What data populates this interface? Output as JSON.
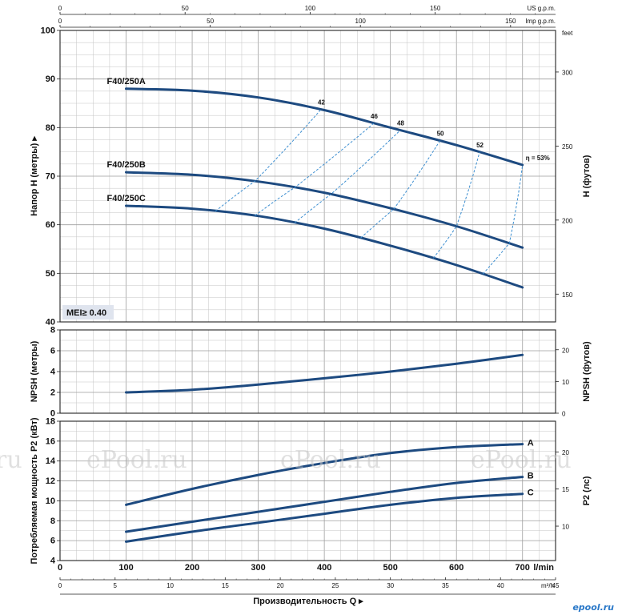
{
  "watermarks": [
    "ru",
    "ePool.ru",
    "ePool.ru",
    "ePool.ru"
  ],
  "logo_text": "epool.ru",
  "colors": {
    "curve": "#1d4a80",
    "eff": "#3c8ed0",
    "grid": "#c4c4c4",
    "grid_major": "#9e9e9e",
    "badge": "#dfe4ee",
    "logo": "#2a78c8"
  },
  "chart_data": [
    {
      "type": "line",
      "id": "head",
      "ylabel": "Напор H (метры) ▸",
      "ylabel2": "H (футов)",
      "x_unit_top_us": "US g.p.m.",
      "x_unit_top_imp": "Imp g.p.m.",
      "x_unit_top_ft": "feet",
      "xlim": [
        0,
        750
      ],
      "ylim": [
        40,
        100
      ],
      "yticks": [
        40,
        50,
        60,
        70,
        80,
        90,
        100
      ],
      "y2ticks": [
        150,
        200,
        250,
        300
      ],
      "us_gpm_ticks": [
        0,
        50,
        100,
        150
      ],
      "imp_gpm_ticks": [
        0,
        50,
        100,
        150
      ],
      "series": [
        {
          "name": "F40/250A",
          "x": [
            100,
            200,
            300,
            400,
            500,
            600,
            700
          ],
          "y": [
            88,
            87.6,
            86.2,
            83.6,
            80.0,
            76.4,
            72.3
          ]
        },
        {
          "name": "F40/250B",
          "x": [
            100,
            200,
            300,
            400,
            500,
            600,
            700
          ],
          "y": [
            70.8,
            70.3,
            68.9,
            66.6,
            63.4,
            59.7,
            55.3
          ]
        },
        {
          "name": "F40/250C",
          "x": [
            100,
            200,
            300,
            400,
            500,
            600,
            700
          ],
          "y": [
            63.9,
            63.3,
            61.8,
            59.2,
            55.7,
            51.7,
            47.1
          ]
        }
      ],
      "efficiency_curves": [
        {
          "label": "42",
          "x": [
            235,
            295,
            395
          ]
        },
        {
          "label": "46",
          "x": [
            295,
            355,
            475
          ]
        },
        {
          "label": "48",
          "x": [
            355,
            410,
            515
          ]
        },
        {
          "label": "50",
          "x": [
            455,
            505,
            575
          ]
        },
        {
          "label": "52",
          "x": [
            565,
            600,
            635
          ]
        },
        {
          "label": "η = 53%",
          "x": [
            640,
            680,
            700
          ]
        }
      ],
      "mei_label": "MEI≥ 0.40"
    },
    {
      "type": "line",
      "id": "npsh",
      "ylabel": "NPSH (метры)",
      "ylabel2": "NPSH (футов)",
      "xlim": [
        0,
        750
      ],
      "ylim": [
        0,
        8
      ],
      "yticks": [
        0,
        2,
        4,
        6,
        8
      ],
      "y2ticks": [
        0,
        10,
        20
      ],
      "series": [
        {
          "name": "NPSH",
          "x": [
            100,
            200,
            300,
            400,
            500,
            600,
            700
          ],
          "y": [
            2.0,
            2.25,
            2.75,
            3.35,
            4.0,
            4.75,
            5.6
          ]
        }
      ]
    },
    {
      "type": "line",
      "id": "power",
      "ylabel": "Потребляемая мощность P2 (кВт)",
      "ylabel2": "P2 (лс)",
      "xlabel": "Производительность Q ▸",
      "x_unit_lmin": "l/min",
      "x_unit_m3h": "m³/h",
      "xlim": [
        0,
        750
      ],
      "ylim": [
        4,
        18
      ],
      "yticks": [
        4,
        6,
        8,
        10,
        12,
        14,
        16,
        18
      ],
      "y2ticks": [
        10,
        15,
        20
      ],
      "x_lmin_ticks": [
        0,
        100,
        200,
        300,
        400,
        500,
        600,
        700
      ],
      "x_m3h_ticks": [
        0,
        5,
        10,
        15,
        20,
        25,
        30,
        35,
        40,
        45
      ],
      "series": [
        {
          "name": "A",
          "x": [
            100,
            200,
            300,
            400,
            500,
            600,
            700
          ],
          "y": [
            9.6,
            11.2,
            12.6,
            13.8,
            14.8,
            15.4,
            15.7
          ]
        },
        {
          "name": "B",
          "x": [
            100,
            200,
            300,
            400,
            500,
            600,
            700
          ],
          "y": [
            6.9,
            7.9,
            8.9,
            9.9,
            10.9,
            11.8,
            12.4
          ]
        },
        {
          "name": "C",
          "x": [
            100,
            200,
            300,
            400,
            500,
            600,
            700
          ],
          "y": [
            5.9,
            6.9,
            7.8,
            8.7,
            9.6,
            10.3,
            10.7
          ]
        }
      ]
    }
  ]
}
